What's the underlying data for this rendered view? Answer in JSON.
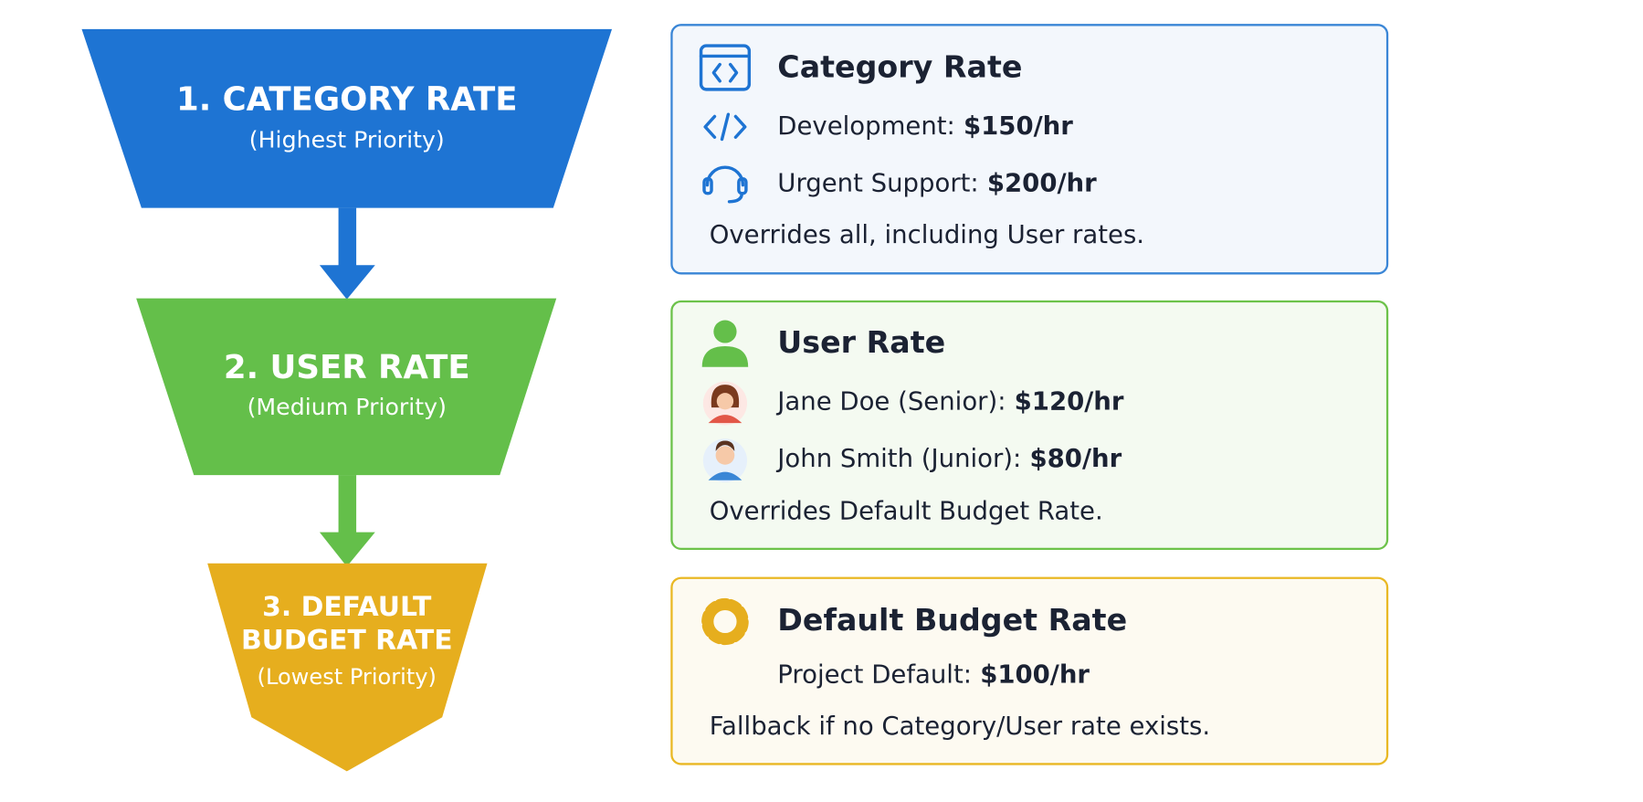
{
  "funnel": [
    {
      "title_lines": [
        "1. CATEGORY RATE"
      ],
      "subtitle": "(Highest Priority)"
    },
    {
      "title_lines": [
        "2. USER RATE"
      ],
      "subtitle": "(Medium Priority)"
    },
    {
      "title_lines": [
        "3. DEFAULT",
        "BUDGET RATE"
      ],
      "subtitle": "(Lowest Priority)"
    }
  ],
  "cards": [
    {
      "title": "Category Rate",
      "items": [
        {
          "label": "Development:",
          "value": "$150/hr"
        },
        {
          "label": "Urgent Support:",
          "value": "$200/hr"
        }
      ],
      "note": "Overrides all, including User rates."
    },
    {
      "title": "User Rate",
      "items": [
        {
          "label": "Jane Doe (Senior):",
          "value": "$120/hr"
        },
        {
          "label": "John Smith (Junior):",
          "value": "$80/hr"
        }
      ],
      "note": "Overrides Default Budget Rate."
    },
    {
      "title": "Default Budget Rate",
      "items": [
        {
          "label": "Project Default:",
          "value": "$100/hr"
        }
      ],
      "note": "Fallback if no Category/User rate exists."
    }
  ]
}
